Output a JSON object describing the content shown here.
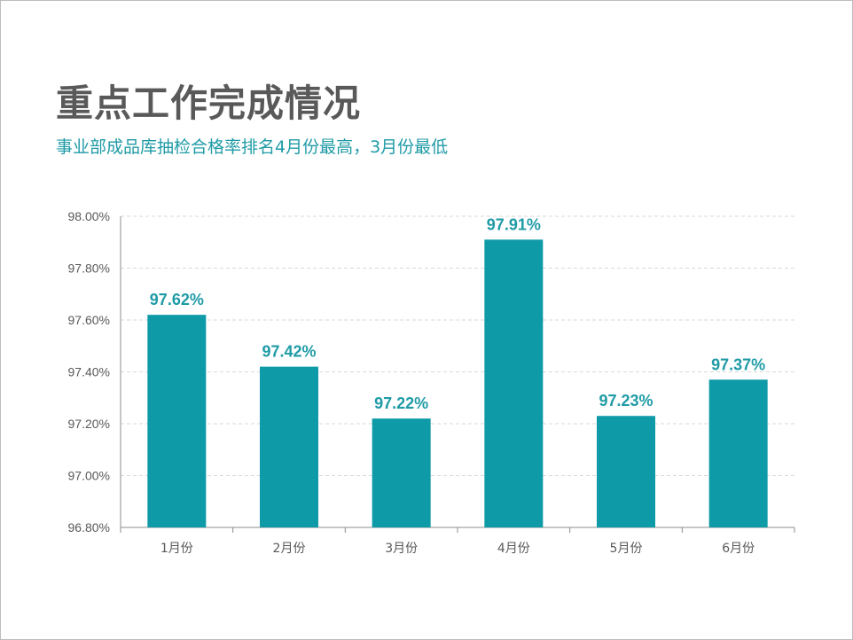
{
  "header": {
    "title": "重点工作完成情况",
    "subtitle": "事业部成品库抽检合格率排名4月份最高，3月份最低"
  },
  "colors": {
    "bar": "#0f9aa7",
    "label": "#1f9ba6",
    "grid": "#d9d9d9",
    "axis": "#8c8c8c"
  },
  "chart_data": {
    "type": "bar",
    "categories": [
      "1月份",
      "2月份",
      "3月份",
      "4月份",
      "5月份",
      "6月份"
    ],
    "values": [
      97.62,
      97.42,
      97.22,
      97.91,
      97.23,
      97.37
    ],
    "value_labels": [
      "97.62%",
      "97.42%",
      "97.22%",
      "97.91%",
      "97.23%",
      "97.37%"
    ],
    "ylim": [
      96.8,
      98.0
    ],
    "yticks": [
      96.8,
      97.0,
      97.2,
      97.4,
      97.6,
      97.8,
      98.0
    ],
    "ytick_labels": [
      "96.80%",
      "97.00%",
      "97.20%",
      "97.40%",
      "97.60%",
      "97.80%",
      "98.00%"
    ],
    "grid": true,
    "legend": "none"
  }
}
